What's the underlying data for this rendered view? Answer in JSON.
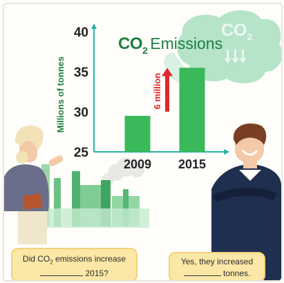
{
  "chart_data": {
    "type": "bar",
    "title": "CO2 Emissions",
    "title_parts": {
      "co": "CO",
      "sub": "2",
      "word": "Emissions"
    },
    "ylabel": "Millions of tonnes",
    "categories": [
      "2009",
      "2015"
    ],
    "values": [
      29.5,
      35.5
    ],
    "ylim": [
      25,
      40
    ],
    "yticks": [
      "25",
      "30",
      "35",
      "40"
    ],
    "annotation": "6 million",
    "bar_color": "#39b95a",
    "axis_color": "#26b3a4",
    "arrow_color": "#e0282a"
  },
  "cloud": {
    "co": "CO",
    "sub": "2"
  },
  "speech_left": {
    "line1_a": "Did CO",
    "line1_sub": "2",
    "line1_b": " emissions increase",
    "line2": " 2015?"
  },
  "speech_right": {
    "line1": "Yes, they increased",
    "line2": " tonnes."
  },
  "colors": {
    "title_green": "#1e7e40",
    "bubble": "#fbe7a6",
    "smoke": "#bfe8c6"
  }
}
